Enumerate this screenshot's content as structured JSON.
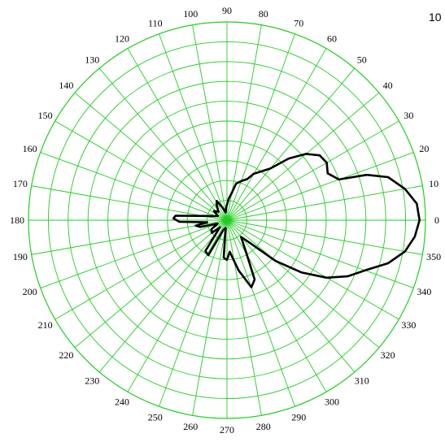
{
  "corner_label": "10",
  "colors": {
    "grid": "#22cc22",
    "pattern": "#000000",
    "background": "#ffffff"
  },
  "chart_data": {
    "type": "polar-line",
    "title": "",
    "angular_unit": "degrees",
    "angular_direction": "counter-clockwise",
    "zero_direction": "right",
    "angle_ticks": [
      0,
      10,
      20,
      30,
      40,
      50,
      60,
      70,
      80,
      90,
      100,
      110,
      120,
      130,
      140,
      150,
      160,
      170,
      180,
      190,
      200,
      210,
      220,
      230,
      240,
      250,
      260,
      270,
      280,
      290,
      300,
      310,
      320,
      330,
      340,
      350
    ],
    "radial_rings": 10,
    "radial_range": [
      0,
      1
    ],
    "radial_labels_shown": false,
    "grid": true,
    "series": [
      {
        "values": [
          {
            "angle": 0,
            "r": 0.97
          },
          {
            "angle": 5,
            "r": 0.96
          },
          {
            "angle": 10,
            "r": 0.91
          },
          {
            "angle": 15,
            "r": 0.84
          },
          {
            "angle": 18,
            "r": 0.74
          },
          {
            "angle": 20,
            "r": 0.6
          },
          {
            "angle": 25,
            "r": 0.56
          },
          {
            "angle": 30,
            "r": 0.58
          },
          {
            "angle": 35,
            "r": 0.57
          },
          {
            "angle": 40,
            "r": 0.52
          },
          {
            "angle": 45,
            "r": 0.44
          },
          {
            "angle": 50,
            "r": 0.34
          },
          {
            "angle": 55,
            "r": 0.3
          },
          {
            "angle": 60,
            "r": 0.27
          },
          {
            "angle": 64,
            "r": 0.23
          },
          {
            "angle": 67,
            "r": 0.22
          },
          {
            "angle": 70,
            "r": 0.21
          },
          {
            "angle": 76,
            "r": 0.19
          },
          {
            "angle": 80,
            "r": 0.14
          },
          {
            "angle": 85,
            "r": 0.11
          },
          {
            "angle": 92,
            "r": 0.07
          },
          {
            "angle": 100,
            "r": 0.04
          },
          {
            "angle": 110,
            "r": 0.07
          },
          {
            "angle": 118,
            "r": 0.11
          },
          {
            "angle": 125,
            "r": 0.09
          },
          {
            "angle": 135,
            "r": 0.06
          },
          {
            "angle": 145,
            "r": 0.08
          },
          {
            "angle": 155,
            "r": 0.05
          },
          {
            "angle": 165,
            "r": 0.08
          },
          {
            "angle": 175,
            "r": 0.26
          },
          {
            "angle": 178,
            "r": 0.27
          },
          {
            "angle": 182,
            "r": 0.24
          },
          {
            "angle": 186,
            "r": 0.1
          },
          {
            "angle": 190,
            "r": 0.16
          },
          {
            "angle": 194,
            "r": 0.14
          },
          {
            "angle": 200,
            "r": 0.05
          },
          {
            "angle": 210,
            "r": 0.09
          },
          {
            "angle": 220,
            "r": 0.1
          },
          {
            "angle": 225,
            "r": 0.05
          },
          {
            "angle": 235,
            "r": 0.19
          },
          {
            "angle": 242,
            "r": 0.2
          },
          {
            "angle": 250,
            "r": 0.05
          },
          {
            "angle": 260,
            "r": 0.04
          },
          {
            "angle": 265,
            "r": 0.19
          },
          {
            "angle": 270,
            "r": 0.2
          },
          {
            "angle": 275,
            "r": 0.16
          },
          {
            "angle": 283,
            "r": 0.26
          },
          {
            "angle": 290,
            "r": 0.36
          },
          {
            "angle": 295,
            "r": 0.33
          },
          {
            "angle": 300,
            "r": 0.2
          },
          {
            "angle": 310,
            "r": 0.11
          },
          {
            "angle": 315,
            "r": 0.16
          },
          {
            "angle": 320,
            "r": 0.32
          },
          {
            "angle": 325,
            "r": 0.46
          },
          {
            "angle": 330,
            "r": 0.58
          },
          {
            "angle": 335,
            "r": 0.67
          },
          {
            "angle": 340,
            "r": 0.74
          },
          {
            "angle": 345,
            "r": 0.84
          },
          {
            "angle": 350,
            "r": 0.91
          },
          {
            "angle": 355,
            "r": 0.95
          },
          {
            "angle": 360,
            "r": 0.97
          }
        ]
      }
    ]
  }
}
